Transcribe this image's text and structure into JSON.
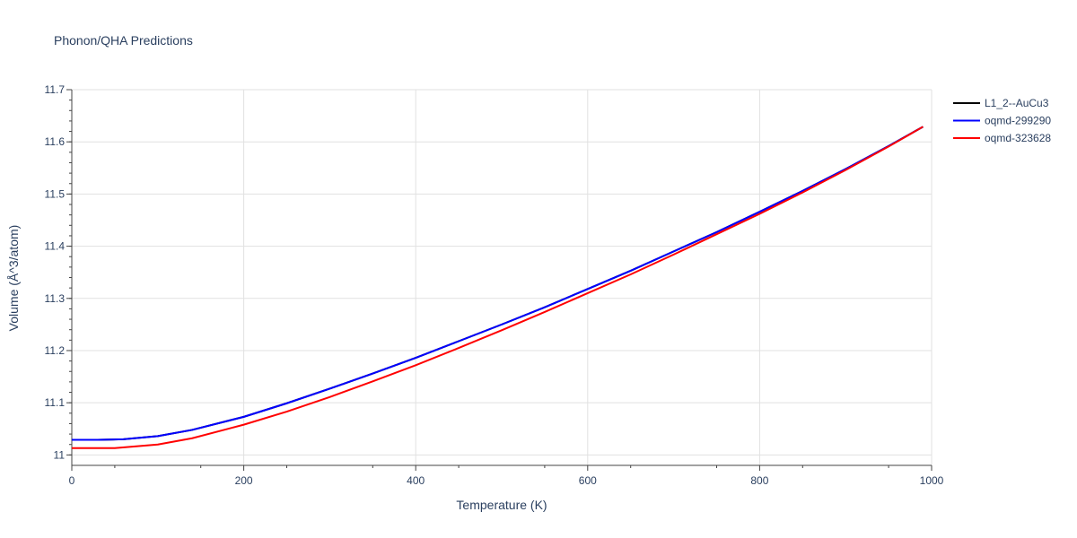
{
  "chart_data": {
    "type": "line",
    "title": "Phonon/QHA Predictions",
    "xlabel": "Temperature (K)",
    "ylabel": "Volume (Å^3/atom)",
    "xlim": [
      0,
      1000
    ],
    "ylim": [
      10.98,
      11.7
    ],
    "xticks": [
      "0",
      "200",
      "400",
      "600",
      "800",
      "1000"
    ],
    "yticks": [
      "11",
      "11.1",
      "11.2",
      "11.3",
      "11.4",
      "11.5",
      "11.6",
      "11.7"
    ],
    "grid": true,
    "legend_position": "top-right",
    "series": [
      {
        "name": "L1_2--AuCu3",
        "color": "#000000",
        "x": [
          0,
          30,
          60,
          100,
          140,
          200,
          250,
          300,
          350,
          400,
          450,
          500,
          550,
          600,
          650,
          700,
          750,
          800,
          850,
          900,
          950,
          990
        ],
        "y": [
          11.029,
          11.029,
          11.03,
          11.036,
          11.048,
          11.073,
          11.099,
          11.127,
          11.156,
          11.186,
          11.218,
          11.25,
          11.283,
          11.318,
          11.353,
          11.39,
          11.427,
          11.466,
          11.506,
          11.548,
          11.592,
          11.629
        ]
      },
      {
        "name": "oqmd-299290",
        "color": "#0000ff",
        "x": [
          0,
          30,
          60,
          100,
          140,
          200,
          250,
          300,
          350,
          400,
          450,
          500,
          550,
          600,
          650,
          700,
          750,
          800,
          850,
          900,
          950,
          990
        ],
        "y": [
          11.029,
          11.029,
          11.03,
          11.036,
          11.048,
          11.073,
          11.099,
          11.127,
          11.156,
          11.186,
          11.218,
          11.25,
          11.283,
          11.318,
          11.353,
          11.39,
          11.427,
          11.466,
          11.506,
          11.548,
          11.592,
          11.629
        ]
      },
      {
        "name": "oqmd-323628",
        "color": "#ff0000",
        "x": [
          0,
          30,
          50,
          100,
          140,
          200,
          250,
          300,
          350,
          400,
          450,
          500,
          550,
          600,
          650,
          700,
          750,
          800,
          850,
          900,
          950,
          990
        ],
        "y": [
          11.013,
          11.013,
          11.013,
          11.02,
          11.032,
          11.058,
          11.083,
          11.111,
          11.141,
          11.172,
          11.205,
          11.239,
          11.274,
          11.31,
          11.346,
          11.384,
          11.423,
          11.462,
          11.503,
          11.546,
          11.591,
          11.629
        ]
      }
    ]
  }
}
